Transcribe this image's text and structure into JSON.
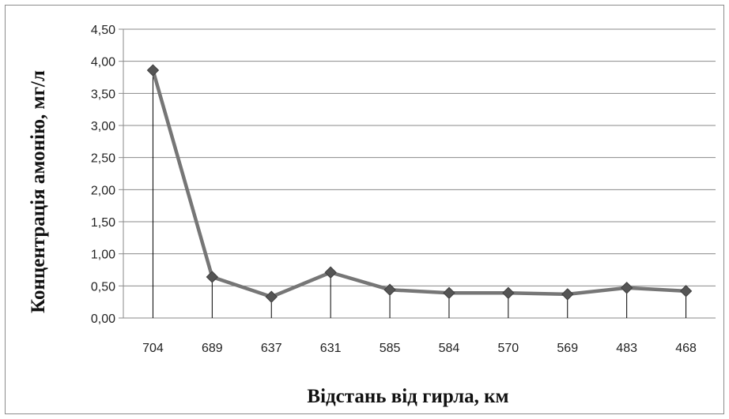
{
  "chart_data": {
    "type": "line",
    "title": "",
    "xlabel": "Відстань від гирла, км",
    "ylabel": "Концентрація амонію, мг/л",
    "categories": [
      "704",
      "689",
      "637",
      "631",
      "585",
      "584",
      "570",
      "569",
      "483",
      "468"
    ],
    "y_ticks": [
      "0,00",
      "0,50",
      "1,00",
      "1,50",
      "2,00",
      "2,50",
      "3,00",
      "3,50",
      "4,00",
      "4,50"
    ],
    "ylim": [
      0,
      4.5
    ],
    "grid": true,
    "legend": "none",
    "drop_lines": true,
    "series": [
      {
        "values": [
          3.86,
          0.64,
          0.33,
          0.71,
          0.44,
          0.39,
          0.39,
          0.37,
          0.47,
          0.42
        ],
        "color": "#767676",
        "marker": "diamond",
        "marker_color": "#555555"
      }
    ]
  }
}
